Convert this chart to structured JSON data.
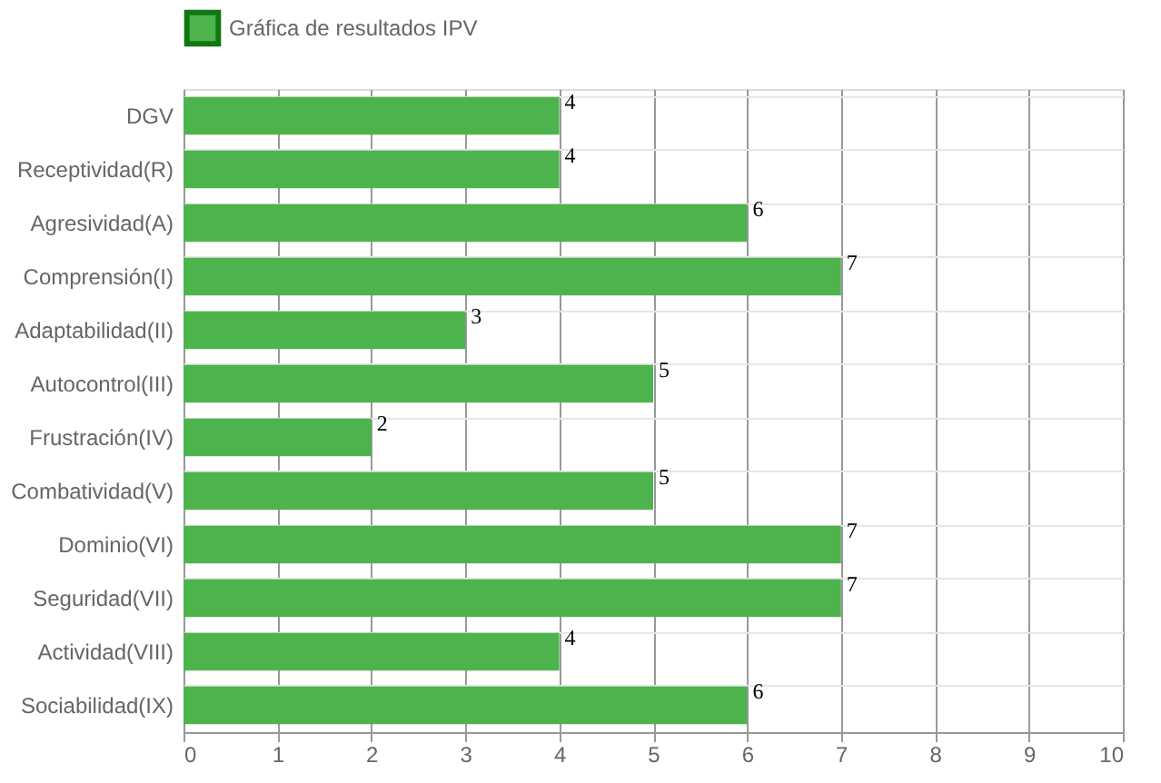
{
  "chart_data": {
    "type": "bar",
    "orientation": "horizontal",
    "categories": [
      "DGV",
      "Receptividad(R)",
      "Agresividad(A)",
      "Comprensión(I)",
      "Adaptabilidad(II)",
      "Autocontrol(III)",
      "Frustración(IV)",
      "Combatividad(V)",
      "Dominio(VI)",
      "Seguridad(VII)",
      "Actividad(VIII)",
      "Sociabilidad(IX)"
    ],
    "series": [
      {
        "name": "Gráfica de resultados IPV",
        "color": "#4db34d",
        "values": [
          4,
          4,
          6,
          7,
          3,
          5,
          2,
          5,
          7,
          7,
          4,
          6
        ]
      }
    ],
    "xlim": [
      0,
      10
    ],
    "xticks": [
      0,
      1,
      2,
      3,
      4,
      5,
      6,
      7,
      8,
      9,
      10
    ],
    "grid": true,
    "legend": "top",
    "data_labels": true
  }
}
